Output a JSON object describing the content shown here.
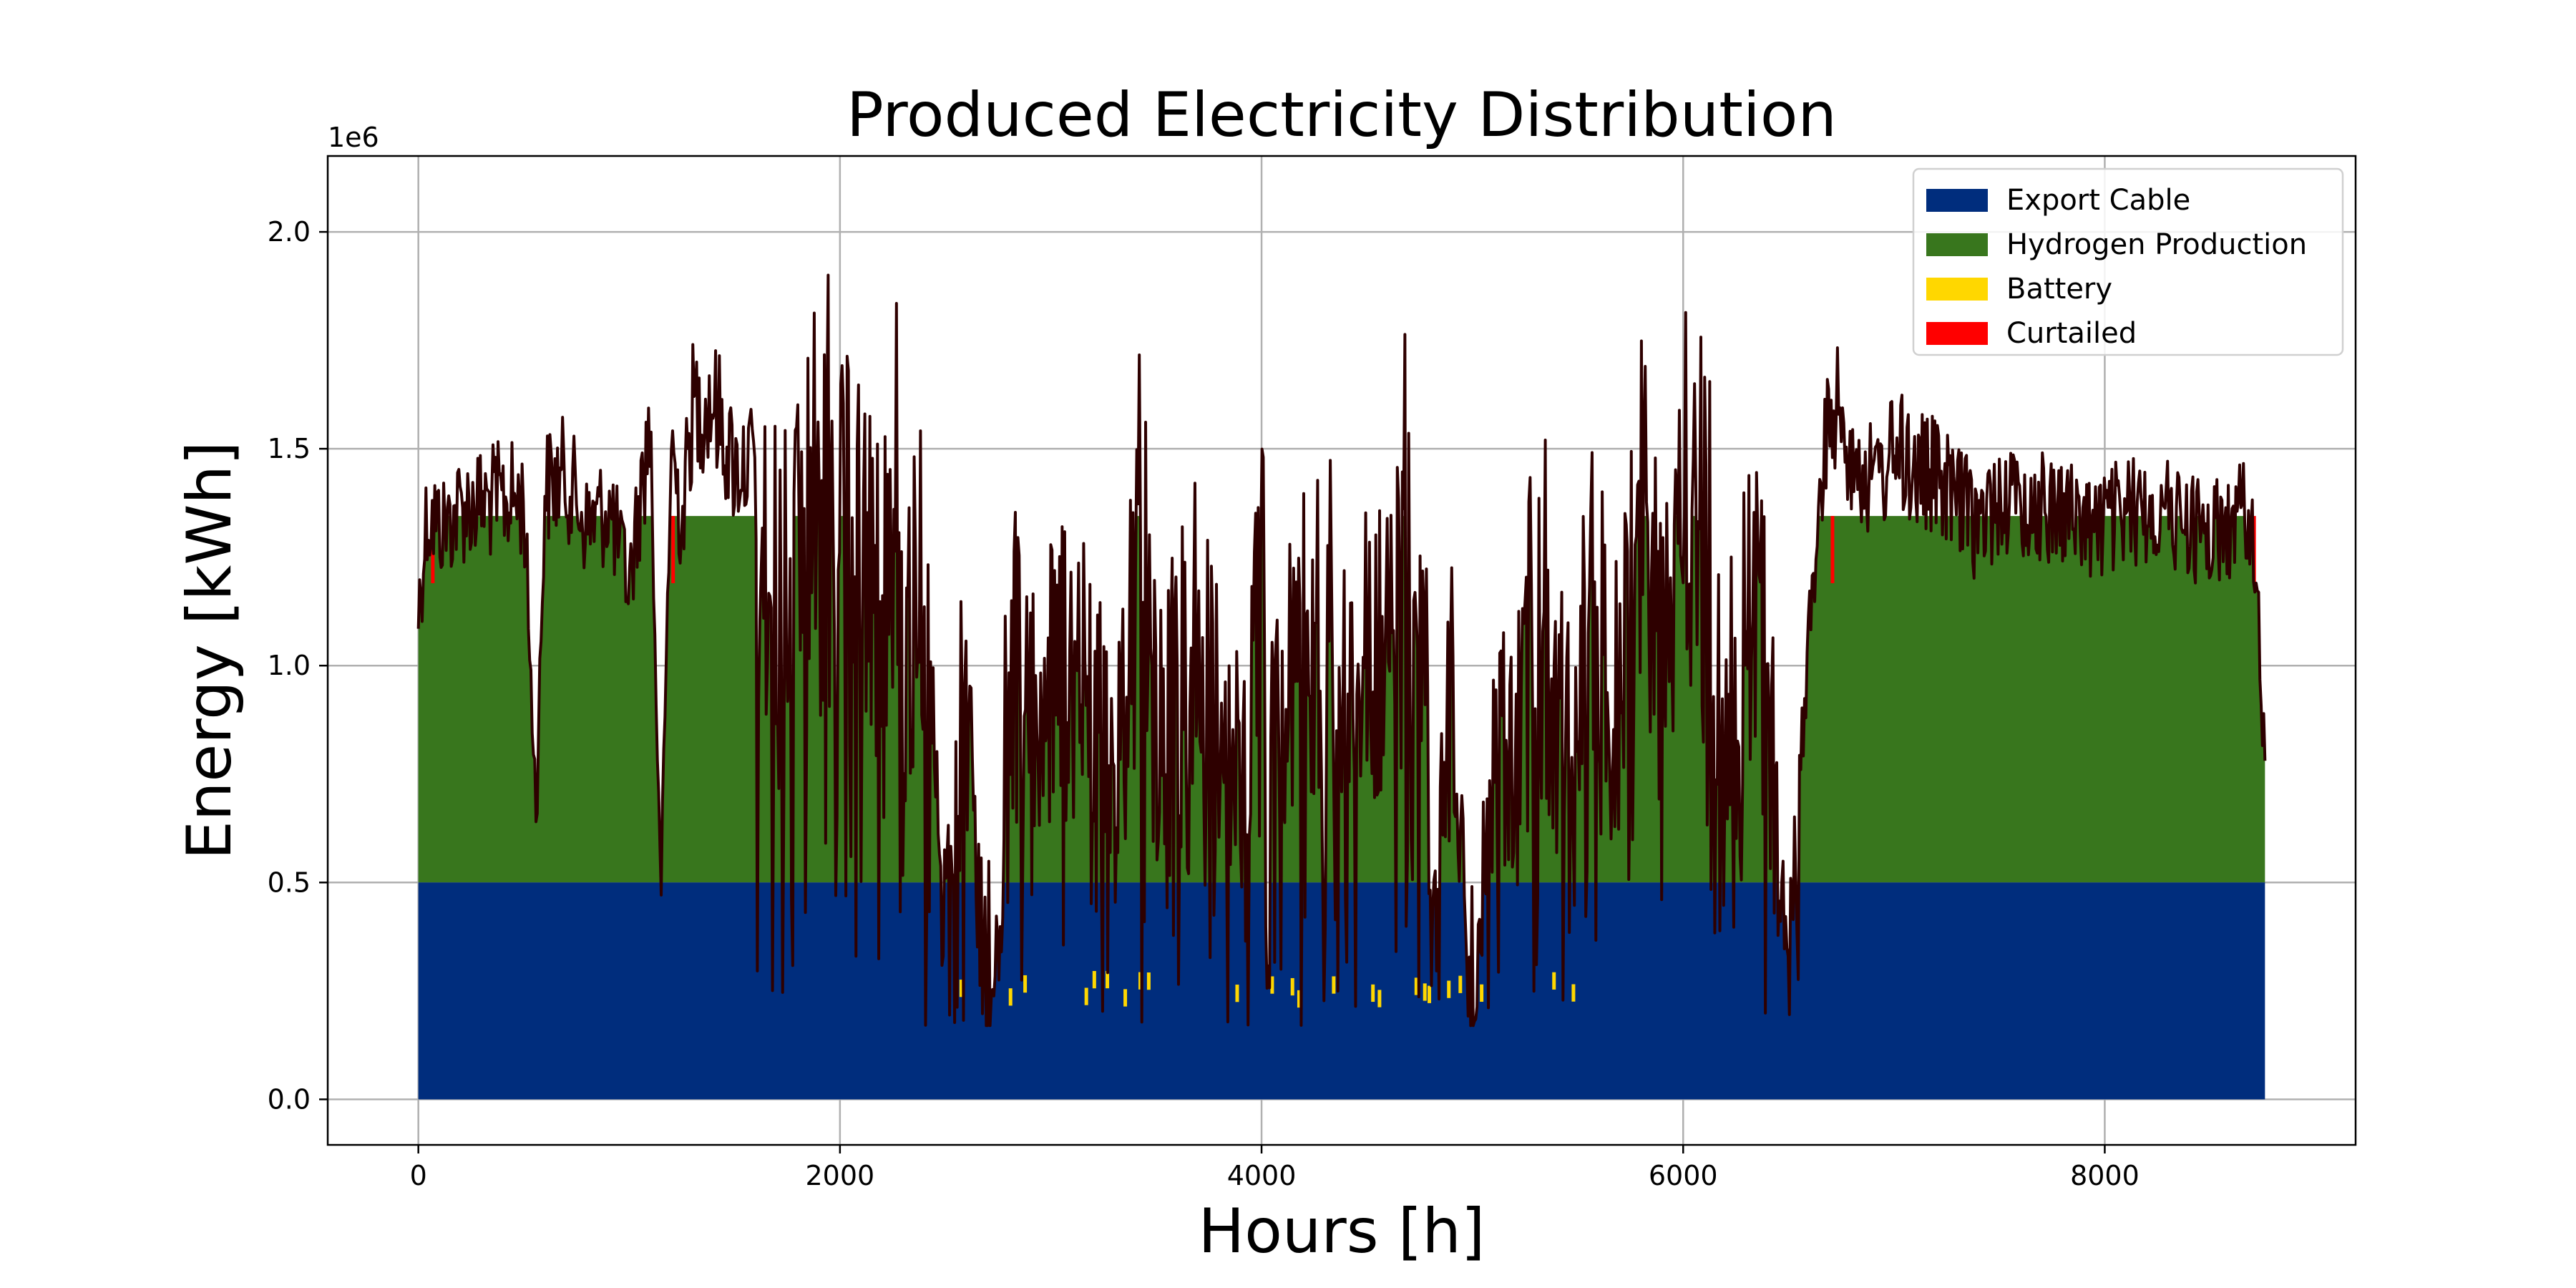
{
  "chart_data": {
    "type": "area",
    "title": "Produced Electricity Distribution",
    "xlabel": "Hours [h]",
    "ylabel": "Energy [kWh]",
    "y_offset_label": "1e6",
    "xlim": [
      -430,
      9190
    ],
    "ylim": [
      -0.105,
      2.175
    ],
    "y_scale_note": "values in units of 1e6 kWh",
    "xticks": [
      0,
      2000,
      4000,
      6000,
      8000
    ],
    "xtick_labels": [
      "0",
      "2000",
      "4000",
      "6000",
      "8000"
    ],
    "yticks": [
      0.0,
      0.5,
      1.0,
      1.5,
      2.0
    ],
    "ytick_labels": [
      "0.0",
      "0.5",
      "1.0",
      "1.5",
      "2.0"
    ],
    "grid": true,
    "legend_position": "top-right",
    "legend": [
      "Export Cable",
      "Hydrogen Production",
      "Battery",
      "Curtailed"
    ],
    "colors": {
      "Export Cable": "#002d7d",
      "Hydrogen Production": "#38761d",
      "Battery": "#ffd700",
      "Curtailed": "#ff0000",
      "total_line": "#2e0000"
    },
    "export_cable_capacity": 0.5,
    "hydrogen_capacity_top": 1.345,
    "x_max": 8760,
    "total_production_profile": {
      "hours": [
        0,
        40,
        120,
        200,
        300,
        400,
        500,
        560,
        600,
        700,
        800,
        900,
        1000,
        1100,
        1150,
        1200,
        1250,
        1300,
        1400,
        1500,
        1600,
        1700,
        1800,
        1900,
        2000,
        2100,
        2200,
        2280,
        2300,
        2400,
        2500,
        2600,
        2700,
        2750,
        2800,
        2900,
        3000,
        3100,
        3200,
        3300,
        3400,
        3500,
        3600,
        3700,
        3800,
        3900,
        4000,
        4100,
        4200,
        4300,
        4400,
        4500,
        4600,
        4700,
        4780,
        4800,
        4900,
        5000,
        5100,
        5200,
        5300,
        5400,
        5500,
        5600,
        5700,
        5800,
        5900,
        6000,
        6100,
        6200,
        6300,
        6400,
        6500,
        6600,
        6700,
        6800,
        6900,
        7000,
        7100,
        7200,
        7300,
        7400,
        7500,
        7600,
        7700,
        7800,
        7900,
        8000,
        8100,
        8200,
        8300,
        8400,
        8500,
        8600,
        8700,
        8760
      ],
      "values": [
        1.23,
        1.48,
        1.45,
        1.5,
        1.51,
        1.52,
        1.52,
        0.72,
        1.55,
        1.58,
        1.45,
        1.5,
        1.3,
        1.72,
        0.5,
        1.67,
        1.45,
        1.75,
        1.77,
        1.6,
        1.62,
        1.55,
        1.65,
        1.9,
        1.68,
        1.85,
        1.55,
        2.06,
        1.4,
        1.6,
        0.55,
        1.2,
        0.17,
        0.4,
        1.5,
        1.15,
        1.28,
        1.4,
        1.3,
        0.9,
        1.55,
        1.2,
        1.35,
        1.45,
        1.2,
        1.0,
        1.55,
        1.1,
        1.4,
        1.6,
        1.25,
        1.4,
        1.35,
        1.9,
        1.5,
        0.4,
        1.3,
        0.17,
        1.05,
        1.2,
        1.6,
        1.1,
        1.4,
        1.7,
        1.25,
        1.85,
        1.35,
        1.93,
        1.75,
        1.4,
        1.6,
        1.3,
        0.4,
        1.2,
        1.78,
        1.65,
        1.55,
        1.65,
        1.6,
        1.57,
        1.52,
        1.45,
        1.53,
        1.5,
        1.5,
        1.5,
        1.45,
        1.46,
        1.48,
        1.5,
        1.48,
        1.46,
        1.43,
        1.45,
        1.51,
        0.83
      ]
    },
    "summer_low_band": {
      "description": "Between ~1600 h and ~6500 h production frequently falls below export cable capacity (0.5e6) and down to ~0.17e6.",
      "hour_range": [
        1600,
        6550
      ],
      "min_value": 0.17
    }
  }
}
